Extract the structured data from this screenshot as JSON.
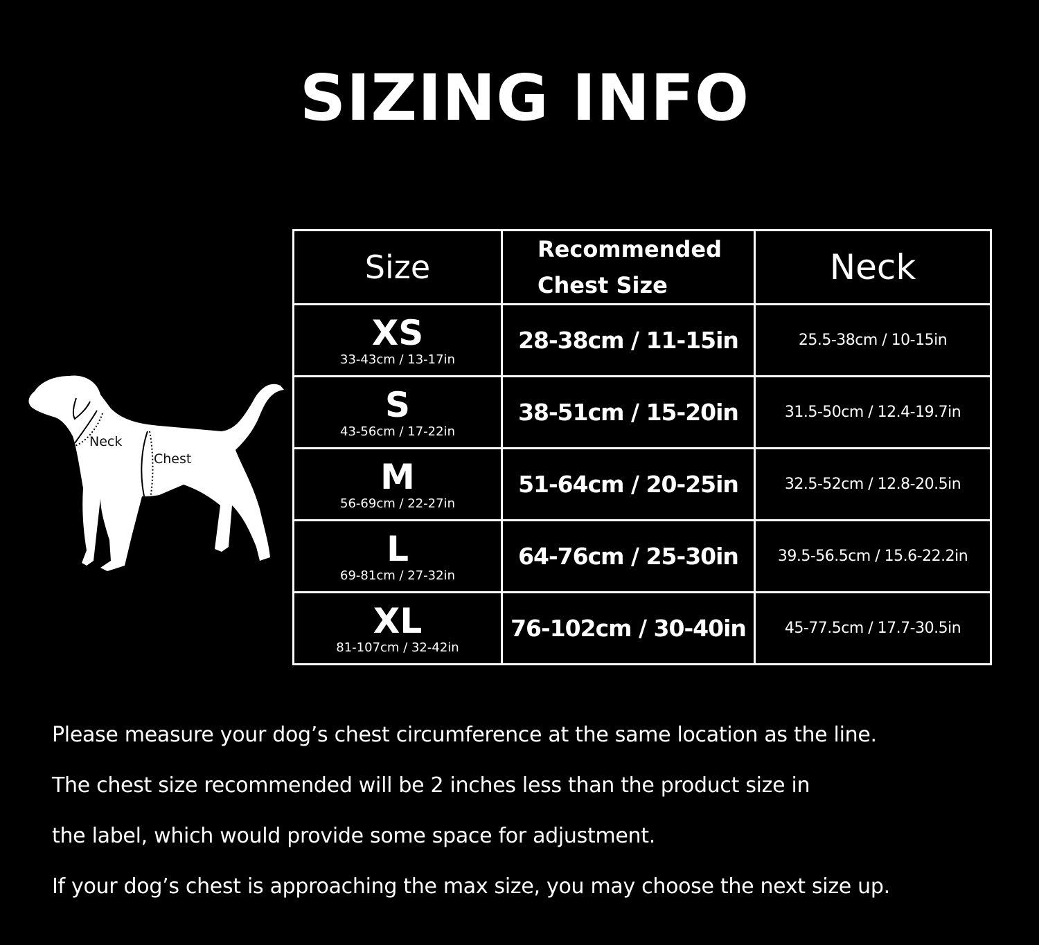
{
  "title": "SIZING INFO",
  "diagram": {
    "neck_label": "Neck",
    "chest_label": "Chest"
  },
  "table": {
    "headers": {
      "size": "Size",
      "chest_line1": "Recommended",
      "chest_line2": "Chest Size",
      "neck": "Neck"
    },
    "rows": [
      {
        "size": "XS",
        "product": "33-43cm / 13-17in",
        "chest": "28-38cm / 11-15in",
        "neck": "25.5-38cm / 10-15in"
      },
      {
        "size": "S",
        "product": "43-56cm / 17-22in",
        "chest": "38-51cm / 15-20in",
        "neck": "31.5-50cm / 12.4-19.7in"
      },
      {
        "size": "M",
        "product": "56-69cm / 22-27in",
        "chest": "51-64cm / 20-25in",
        "neck": "32.5-52cm / 12.8-20.5in"
      },
      {
        "size": "L",
        "product": "69-81cm / 27-32in",
        "chest": "64-76cm / 25-30in",
        "neck": "39.5-56.5cm / 15.6-22.2in"
      },
      {
        "size": "XL",
        "product": "81-107cm / 32-42in",
        "chest": "76-102cm / 30-40in",
        "neck": "45-77.5cm / 17.7-30.5in"
      }
    ]
  },
  "notes": [
    "Please measure your dog’s chest circumference at the same location as the line.",
    "The chest size recommended will be 2 inches less than the product size in",
    "the label, which would provide some space for adjustment.",
    "If your dog’s chest is approaching the max size, you may choose the next size up."
  ]
}
